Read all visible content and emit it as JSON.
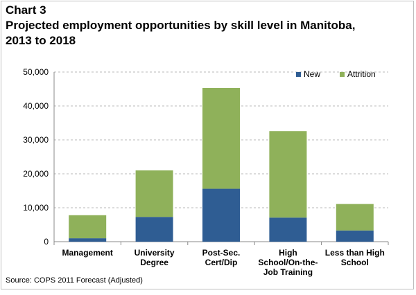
{
  "title_lines": [
    "Chart 3",
    "Projected employment opportunities by skill level in Manitoba,",
    "2013 to 2018"
  ],
  "source": "Source: COPS 2011 Forecast (Adjusted)",
  "colors": {
    "new": "#2f5d93",
    "attrition": "#8fb15a",
    "grid": "#b8b8b8"
  },
  "chart_data": {
    "type": "bar",
    "stacked": true,
    "categories": [
      [
        "Management"
      ],
      [
        "University",
        "Degree"
      ],
      [
        "Post-Sec.",
        "Cert/Dip"
      ],
      [
        "High",
        "School/On-the-",
        "Job Training"
      ],
      [
        "Less than High",
        "School"
      ]
    ],
    "series": [
      {
        "name": "New",
        "values": [
          1000,
          7300,
          15600,
          7100,
          3300
        ]
      },
      {
        "name": "Attrition",
        "values": [
          6800,
          13700,
          29700,
          25500,
          7800
        ]
      }
    ],
    "ylim": [
      0,
      50000
    ],
    "yticks": [
      "0",
      "10,000",
      "20,000",
      "30,000",
      "40,000",
      "50,000"
    ],
    "ytick_values": [
      0,
      10000,
      20000,
      30000,
      40000,
      50000
    ],
    "xlabel": "",
    "ylabel": "",
    "grid": true,
    "legend_position": "top-right"
  }
}
